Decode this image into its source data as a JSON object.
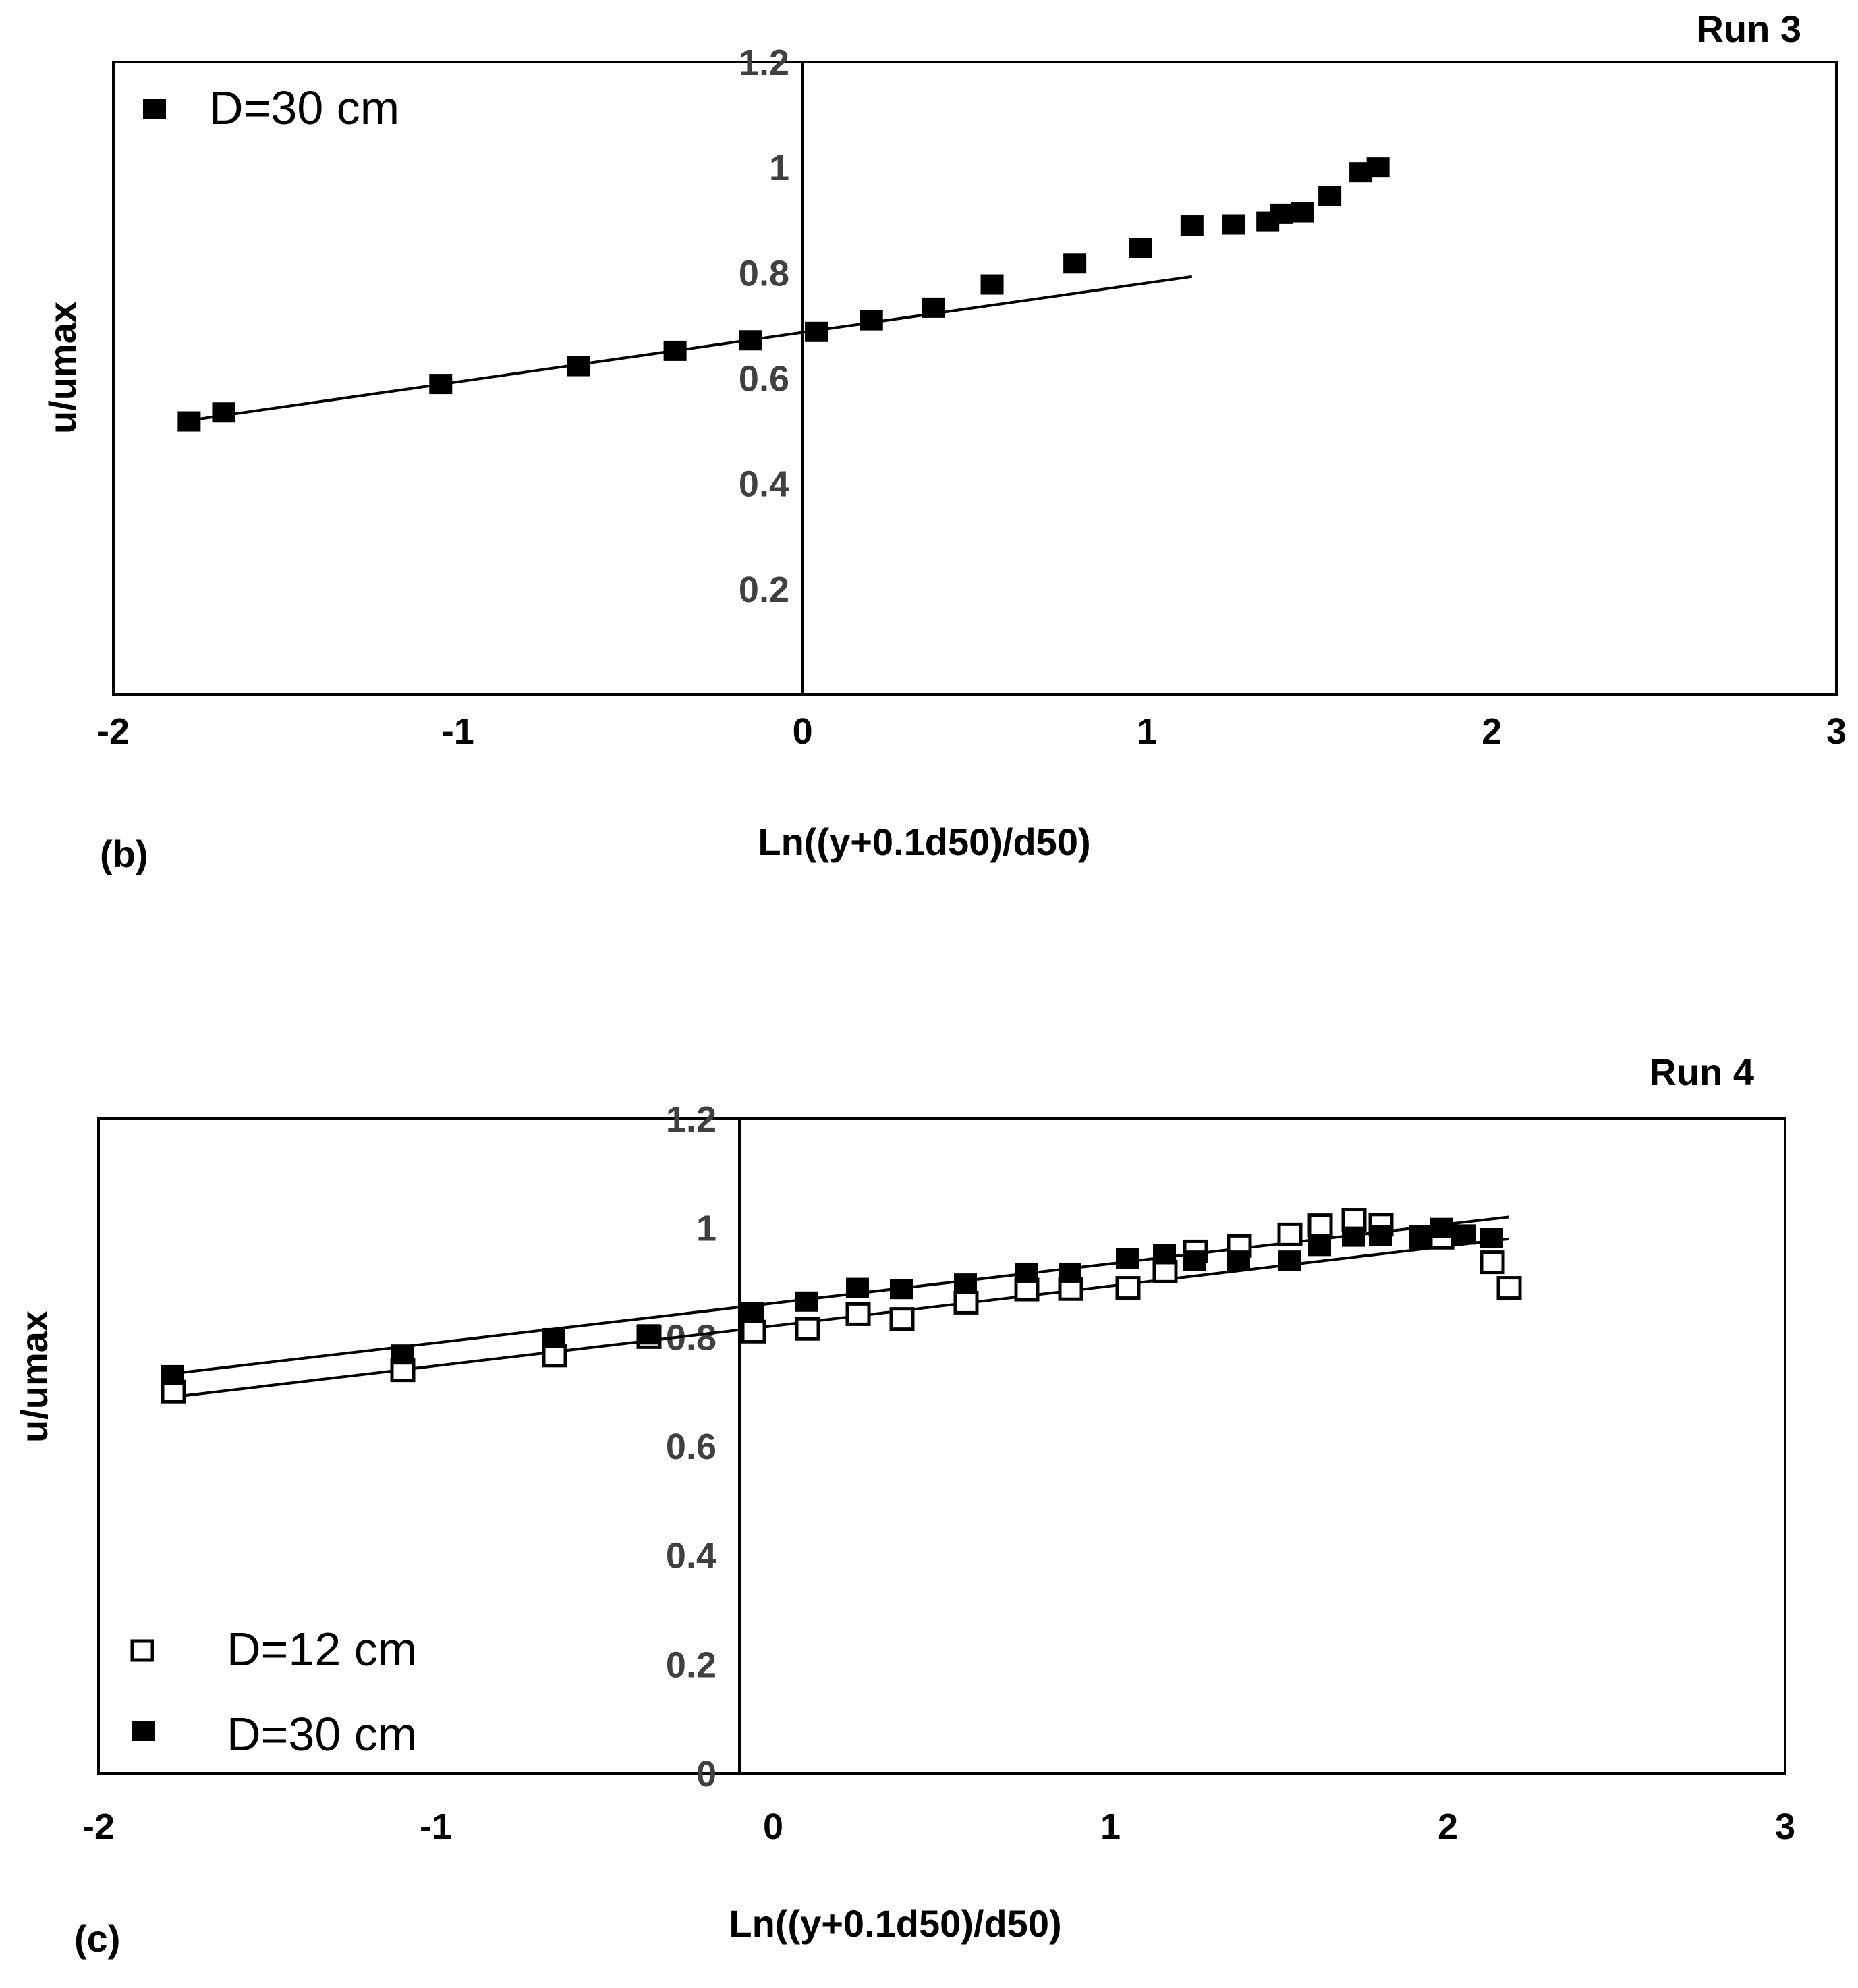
{
  "chart_data": [
    {
      "type": "scatter",
      "panel_label": "(b)",
      "title": "Run 3",
      "xlabel": "Ln((y+0.1d50)/d50)",
      "ylabel": "u/umax",
      "xlim": [
        -2,
        3
      ],
      "ylim": [
        0,
        1.2
      ],
      "x_ticks": [
        -2,
        -1,
        0,
        1,
        2,
        3
      ],
      "x_tick_labels": [
        "-2",
        "-1",
        "0",
        "1",
        "2",
        "3"
      ],
      "y_ticks": [
        0.2,
        0.4,
        0.6,
        0.8,
        1,
        1.2
      ],
      "y_tick_labels": [
        "0.2",
        "0.4",
        "0.6",
        "0.8",
        "1",
        "1.2"
      ],
      "grid": false,
      "legend_position": "top-left",
      "series": [
        {
          "name": "D=30 cm",
          "marker": "filled-square",
          "x": [
            -1.78,
            -1.68,
            -1.05,
            -0.65,
            -0.37,
            -0.15,
            0.04,
            0.2,
            0.38,
            0.55,
            0.79,
            0.98,
            1.13,
            1.25,
            1.35,
            1.39,
            1.45,
            1.53,
            1.62,
            1.67
          ],
          "y": [
            0.518,
            0.535,
            0.589,
            0.623,
            0.652,
            0.672,
            0.688,
            0.71,
            0.734,
            0.778,
            0.818,
            0.847,
            0.89,
            0.892,
            0.897,
            0.912,
            0.915,
            0.946,
            0.991,
            1.0
          ],
          "fit_line": {
            "x": [
              -1.78,
              1.13
            ],
            "y": [
              0.52,
              0.793
            ]
          }
        }
      ]
    },
    {
      "type": "scatter",
      "panel_label": "(c)",
      "title": "Run 4",
      "xlabel": "Ln((y+0.1d50)/d50)",
      "ylabel": "u/umax",
      "xlim": [
        -2,
        3
      ],
      "ylim": [
        0,
        1.2
      ],
      "x_ticks": [
        -2,
        -1,
        0,
        1,
        2,
        3
      ],
      "x_tick_labels": [
        "-2",
        "-1",
        "0",
        "1",
        "2",
        "3"
      ],
      "y_ticks": [
        0,
        0.2,
        0.4,
        0.6,
        0.8,
        1,
        1.2
      ],
      "y_tick_labels": [
        "0",
        "0.2",
        "0.4",
        "0.6",
        "0.8",
        "1",
        "1.2"
      ],
      "grid": false,
      "legend_position": "bottom-left",
      "series": [
        {
          "name": "D=12 cm",
          "marker": "open-square",
          "x": [
            -1.78,
            -1.1,
            -0.65,
            -0.37,
            -0.06,
            0.1,
            0.25,
            0.38,
            0.57,
            0.75,
            0.88,
            1.05,
            1.16,
            1.25,
            1.38,
            1.53,
            1.62,
            1.72,
            1.8,
            1.92,
            1.98,
            2.13,
            2.18
          ],
          "y": [
            0.7,
            0.739,
            0.766,
            0.8,
            0.81,
            0.815,
            0.842,
            0.833,
            0.863,
            0.887,
            0.888,
            0.89,
            0.92,
            0.957,
            0.967,
            0.988,
            1.005,
            1.015,
            1.006,
            0.983,
            0.982,
            0.937,
            0.89
          ],
          "fit_line": {
            "x": [
              -1.78,
              2.18
            ],
            "y": [
              0.69,
              0.98
            ]
          }
        },
        {
          "name": "D=30 cm",
          "marker": "filled-square",
          "x": [
            -1.78,
            -1.1,
            -0.65,
            -0.37,
            -0.06,
            0.1,
            0.25,
            0.38,
            0.57,
            0.75,
            0.88,
            1.05,
            1.16,
            1.25,
            1.38,
            1.53,
            1.62,
            1.72,
            1.8,
            1.92,
            1.98,
            2.05,
            2.13
          ],
          "y": [
            0.73,
            0.768,
            0.798,
            0.805,
            0.845,
            0.865,
            0.89,
            0.888,
            0.898,
            0.918,
            0.918,
            0.944,
            0.952,
            0.94,
            0.94,
            0.94,
            0.967,
            0.984,
            0.986,
            0.985,
            1.0,
            0.988,
            0.981
          ],
          "fit_line": {
            "x": [
              -1.78,
              2.18
            ],
            "y": [
              0.733,
              1.02
            ]
          }
        }
      ]
    }
  ]
}
